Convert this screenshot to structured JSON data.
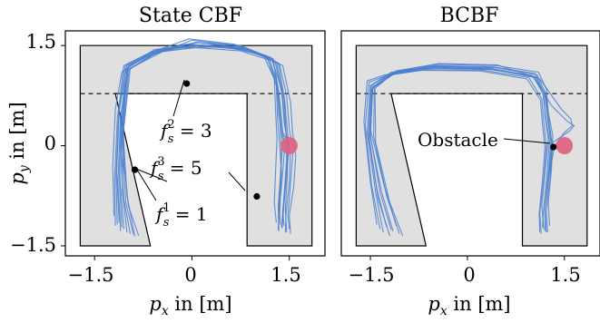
{
  "chart_data": [
    {
      "type": "line",
      "title": "State CBF",
      "xlabel": "p_x in [m]",
      "ylabel": "p_y in [m]",
      "xlim": [
        -1.95,
        2.05
      ],
      "ylim": [
        -1.65,
        1.72
      ],
      "xticks": [
        -1.5,
        0,
        1.5
      ],
      "xtick_labels": [
        "−1.5",
        "0",
        "1.5"
      ],
      "yticks": [
        -1.5,
        0,
        1.5
      ],
      "ytick_labels": [
        "−1.5",
        "0",
        "1.5"
      ],
      "grid": false,
      "region": {
        "fill": "#e0e0e0",
        "outline": [
          [
            -1.72,
            1.5
          ],
          [
            1.85,
            1.5
          ],
          [
            1.85,
            -1.5
          ],
          [
            0.85,
            -1.5
          ],
          [
            0.85,
            0.78
          ],
          [
            -1.18,
            0.78
          ],
          [
            -0.64,
            -1.5
          ],
          [
            -1.72,
            -1.5
          ]
        ]
      },
      "dashed_line": {
        "x": [
          -1.72,
          1.85
        ],
        "y": 0.78
      },
      "obstacle": {
        "center": [
          1.5,
          0.0
        ],
        "radius": 0.13,
        "color": "#e0607e"
      },
      "series": [
        {
          "values_x": [
            -1.18,
            -1.19,
            -1.15,
            -1.05,
            -0.6,
            0.0,
            0.7,
            1.25,
            1.36,
            1.4,
            1.5,
            1.45,
            1.4,
            1.38
          ],
          "values_y": [
            -1.2,
            -0.5,
            0.4,
            1.2,
            1.42,
            1.5,
            1.46,
            1.3,
            0.6,
            0.2,
            0.0,
            -0.5,
            -1.0,
            -1.22
          ]
        },
        {
          "values_x": [
            -1.12,
            -1.16,
            -1.12,
            -1.0,
            -0.5,
            0.1,
            0.8,
            1.3,
            1.42,
            1.45,
            1.46,
            1.43,
            1.4,
            1.42
          ],
          "values_y": [
            -1.15,
            -0.4,
            0.5,
            1.22,
            1.45,
            1.54,
            1.47,
            1.25,
            0.7,
            0.2,
            -0.2,
            -0.6,
            -1.0,
            -1.2
          ]
        },
        {
          "values_x": [
            -1.05,
            -1.1,
            -1.08,
            -0.98,
            -0.55,
            0.05,
            0.75,
            1.2,
            1.33,
            1.36,
            1.38,
            1.36,
            1.33,
            1.34
          ],
          "values_y": [
            -1.25,
            -0.6,
            0.3,
            1.18,
            1.4,
            1.47,
            1.42,
            1.28,
            0.8,
            0.3,
            -0.1,
            -0.5,
            -0.9,
            -1.28
          ]
        },
        {
          "values_x": [
            -0.95,
            -1.05,
            -1.1,
            -1.02,
            -0.65,
            -0.1,
            0.6,
            1.15,
            1.3,
            1.32,
            1.35,
            1.38,
            1.36,
            1.35
          ],
          "values_y": [
            -1.32,
            -0.8,
            0.2,
            1.15,
            1.38,
            1.52,
            1.48,
            1.35,
            0.9,
            0.4,
            0.05,
            -0.4,
            -0.8,
            -1.1
          ]
        },
        {
          "values_x": [
            -0.82,
            -0.98,
            -1.08,
            -1.0,
            -0.6,
            0.0,
            0.7,
            1.22,
            1.38,
            1.42,
            1.48,
            1.47,
            1.44,
            1.46
          ],
          "values_y": [
            -1.35,
            -0.9,
            0.1,
            1.12,
            1.36,
            1.58,
            1.5,
            1.32,
            0.85,
            0.35,
            0.05,
            -0.45,
            -0.95,
            -1.3
          ]
        },
        {
          "values_x": [
            -1.2,
            -1.22,
            -1.18,
            -1.08,
            -0.7,
            -0.2,
            0.5,
            1.1,
            1.27,
            1.29,
            1.31,
            1.29,
            1.27,
            1.3
          ],
          "values_y": [
            -1.05,
            -0.3,
            0.55,
            1.1,
            1.35,
            1.47,
            1.48,
            1.36,
            1.0,
            0.5,
            0.1,
            -0.35,
            -0.85,
            -1.15
          ]
        },
        {
          "values_x": [
            -1.1,
            -1.14,
            -1.1,
            -0.98,
            -0.5,
            0.15,
            0.85,
            1.35,
            1.46,
            1.5,
            1.56,
            1.52,
            1.48,
            1.5
          ],
          "values_y": [
            -1.28,
            -0.55,
            0.45,
            1.2,
            1.43,
            1.51,
            1.45,
            1.22,
            0.75,
            0.25,
            -0.05,
            -0.55,
            -1.05,
            -1.25
          ]
        },
        {
          "values_x": [
            -1.0,
            -1.07,
            -1.05,
            -0.95,
            -0.45,
            0.2,
            0.9,
            1.4,
            1.52,
            1.55,
            1.6,
            1.57,
            1.5,
            1.52
          ],
          "values_y": [
            -1.3,
            -0.7,
            0.25,
            1.16,
            1.41,
            1.49,
            1.43,
            1.2,
            0.65,
            0.2,
            -0.15,
            -0.6,
            -1.05,
            -1.32
          ]
        },
        {
          "values_x": [
            -0.9,
            -1.02,
            -1.07,
            -1.0,
            -0.55,
            0.05,
            0.75,
            1.25,
            1.34,
            1.38,
            1.43,
            1.4,
            1.35,
            1.33
          ],
          "values_y": [
            -1.33,
            -0.85,
            0.15,
            1.13,
            1.39,
            1.55,
            1.5,
            1.3,
            0.8,
            0.3,
            0.0,
            -0.4,
            -0.9,
            -1.26
          ]
        },
        {
          "values_x": [
            -1.15,
            -1.17,
            -1.13,
            -1.03,
            -0.62,
            -0.05,
            0.65,
            1.18,
            1.31,
            1.34,
            1.4,
            1.37,
            1.34,
            1.36
          ],
          "values_y": [
            -1.18,
            -0.45,
            0.48,
            1.19,
            1.4,
            1.6,
            1.52,
            1.33,
            0.95,
            0.45,
            0.08,
            -0.38,
            -0.88,
            -1.18
          ]
        },
        {
          "values_x": [
            -1.08,
            -1.12,
            -1.09,
            -0.99,
            -0.58,
            0.02,
            0.72,
            1.28,
            1.4,
            1.44,
            1.47,
            1.45,
            1.41,
            1.39
          ],
          "values_y": [
            -1.22,
            -0.5,
            0.35,
            1.17,
            1.44,
            1.5,
            1.47,
            1.27,
            0.72,
            0.28,
            -0.08,
            -0.52,
            -0.98,
            -1.24
          ]
        },
        {
          "values_x": [
            -0.88,
            -1.0,
            -1.06,
            -0.97,
            -0.52,
            0.1,
            0.82,
            1.33,
            1.43,
            1.47,
            1.52,
            1.5,
            1.45,
            1.44
          ],
          "values_y": [
            -1.36,
            -0.75,
            0.22,
            1.14,
            1.42,
            1.5,
            1.46,
            1.24,
            0.68,
            0.22,
            -0.1,
            -0.55,
            -1.02,
            -1.3
          ]
        }
      ],
      "points": [
        {
          "x": -0.08,
          "y": 0.93,
          "text": "f_s^2 = 3"
        },
        {
          "x": -0.88,
          "y": -0.36,
          "text": "f_s^3 = 5"
        },
        {
          "x": 1.0,
          "y": -0.76,
          "text": "f_s^3 = 5"
        },
        {
          "x": -0.88,
          "y": -0.36,
          "text": "f_s^1 = 1"
        }
      ],
      "annotations": [
        {
          "base": "f",
          "sub": "s",
          "sup": "2",
          "rest": " = 3"
        },
        {
          "base": "f",
          "sub": "s",
          "sup": "3",
          "rest": " = 5"
        },
        {
          "base": "f",
          "sub": "s",
          "sup": "1",
          "rest": " = 1"
        }
      ]
    },
    {
      "type": "line",
      "title": "BCBF",
      "xlabel": "p_x in [m]",
      "ylabel": "",
      "xlim": [
        -1.95,
        2.05
      ],
      "ylim": [
        -1.65,
        1.72
      ],
      "xticks": [
        -1.5,
        0,
        1.5
      ],
      "xtick_labels": [
        "−1.5",
        "0",
        "1.5"
      ],
      "grid": false,
      "region": {
        "fill": "#e0e0e0",
        "outline": [
          [
            -1.72,
            1.5
          ],
          [
            1.85,
            1.5
          ],
          [
            1.85,
            -1.5
          ],
          [
            0.85,
            -1.5
          ],
          [
            0.85,
            0.78
          ],
          [
            -1.18,
            0.78
          ],
          [
            -0.64,
            -1.5
          ],
          [
            -1.72,
            -1.5
          ]
        ]
      },
      "dashed_line": {
        "x": [
          -1.72,
          1.85
        ],
        "y": 0.78
      },
      "obstacle": {
        "center": [
          1.5,
          0.0
        ],
        "radius": 0.13,
        "color": "#e0607e"
      },
      "series": [
        {
          "values_x": [
            -1.3,
            -1.42,
            -1.55,
            -1.5,
            -1.2,
            -0.6,
            0.3,
            1.0,
            1.18,
            1.2,
            1.25,
            1.2,
            1.15,
            1.18
          ],
          "values_y": [
            -1.3,
            -0.7,
            0.2,
            0.9,
            1.08,
            1.17,
            1.15,
            1.05,
            0.8,
            0.45,
            0.1,
            -0.4,
            -0.9,
            -1.25
          ]
        },
        {
          "values_x": [
            -1.2,
            -1.38,
            -1.52,
            -1.48,
            -1.15,
            -0.5,
            0.4,
            1.05,
            1.2,
            1.24,
            1.3,
            1.26,
            1.2,
            1.22
          ],
          "values_y": [
            -1.35,
            -0.8,
            0.1,
            0.85,
            1.1,
            1.2,
            1.18,
            1.08,
            0.75,
            0.4,
            0.05,
            -0.45,
            -0.95,
            -1.3
          ]
        },
        {
          "values_x": [
            -1.1,
            -1.3,
            -1.5,
            -1.46,
            -1.1,
            -0.45,
            0.45,
            1.1,
            1.22,
            1.25,
            1.32,
            1.3,
            1.25,
            1.27
          ],
          "values_y": [
            -1.2,
            -0.55,
            0.25,
            0.92,
            1.12,
            1.22,
            1.2,
            1.1,
            0.85,
            0.5,
            0.15,
            -0.35,
            -0.85,
            -1.2
          ]
        },
        {
          "values_x": [
            -1.35,
            -1.48,
            -1.58,
            -1.52,
            -1.25,
            -0.65,
            0.25,
            0.95,
            1.15,
            1.18,
            1.22,
            1.18,
            1.12,
            1.14
          ],
          "values_y": [
            -1.25,
            -0.6,
            0.3,
            0.95,
            1.05,
            1.14,
            1.13,
            1.02,
            0.7,
            0.35,
            0.0,
            -0.5,
            -1.0,
            -1.32
          ]
        },
        {
          "values_x": [
            -1.05,
            -1.25,
            -1.45,
            -1.44,
            -1.12,
            -0.48,
            0.42,
            1.08,
            1.21,
            1.24,
            1.29,
            1.25,
            1.2,
            1.2
          ],
          "values_y": [
            -1.32,
            -0.75,
            0.15,
            0.88,
            1.09,
            1.19,
            1.17,
            1.06,
            0.78,
            0.42,
            0.06,
            -0.42,
            -0.92,
            -1.28
          ]
        },
        {
          "values_x": [
            -1.25,
            -1.4,
            -1.53,
            -1.49,
            -1.18,
            -0.55,
            0.35,
            1.02,
            1.17,
            1.21,
            1.27,
            1.23,
            1.18,
            1.16
          ],
          "values_y": [
            -1.22,
            -0.65,
            0.18,
            0.9,
            1.1,
            1.18,
            1.16,
            1.04,
            0.77,
            0.42,
            0.08,
            -0.42,
            -0.92,
            -1.22
          ]
        },
        {
          "values_x": [
            -1.15,
            -1.33,
            -1.5,
            -1.47,
            -1.14,
            -0.52,
            0.38,
            1.06,
            1.22,
            1.26,
            1.31,
            1.28,
            1.22,
            1.24
          ],
          "values_y": [
            -1.28,
            -0.68,
            0.12,
            0.86,
            1.07,
            1.16,
            1.14,
            1.03,
            0.72,
            0.38,
            0.02,
            -0.48,
            -0.98,
            -1.3
          ]
        },
        {
          "values_x": [
            -1.4,
            -1.5,
            -1.6,
            -1.55,
            -1.28,
            -0.7,
            0.2,
            0.92,
            1.13,
            1.16,
            1.2,
            1.16,
            1.11,
            1.12
          ],
          "values_y": [
            -1.18,
            -0.55,
            0.35,
            0.97,
            1.06,
            1.13,
            1.12,
            1.0,
            0.68,
            0.32,
            -0.02,
            -0.52,
            -1.02,
            -1.3
          ]
        },
        {
          "values_x": [
            -1.0,
            -1.2,
            -1.42,
            -1.43,
            -1.1,
            -0.44,
            0.46,
            1.12,
            1.45,
            1.6,
            1.62,
            1.5,
            1.35,
            1.23
          ],
          "values_y": [
            -1.35,
            -0.85,
            0.05,
            0.86,
            1.12,
            1.23,
            1.21,
            1.0,
            0.55,
            0.4,
            0.3,
            0.2,
            0.0,
            -0.6
          ]
        },
        {
          "values_x": [
            -1.18,
            -1.35,
            -1.5,
            -1.47,
            -1.16,
            -0.53,
            0.37,
            1.04,
            1.3,
            1.55,
            1.65,
            1.58,
            1.32,
            1.22
          ],
          "values_y": [
            -1.26,
            -0.7,
            0.15,
            0.88,
            1.08,
            1.17,
            1.15,
            1.02,
            0.6,
            0.36,
            0.3,
            0.22,
            0.05,
            -0.8
          ]
        }
      ],
      "points": [
        {
          "x": 1.33,
          "y": -0.02,
          "text": "Obstacle"
        }
      ],
      "annotation_text": "Obstacle"
    }
  ]
}
